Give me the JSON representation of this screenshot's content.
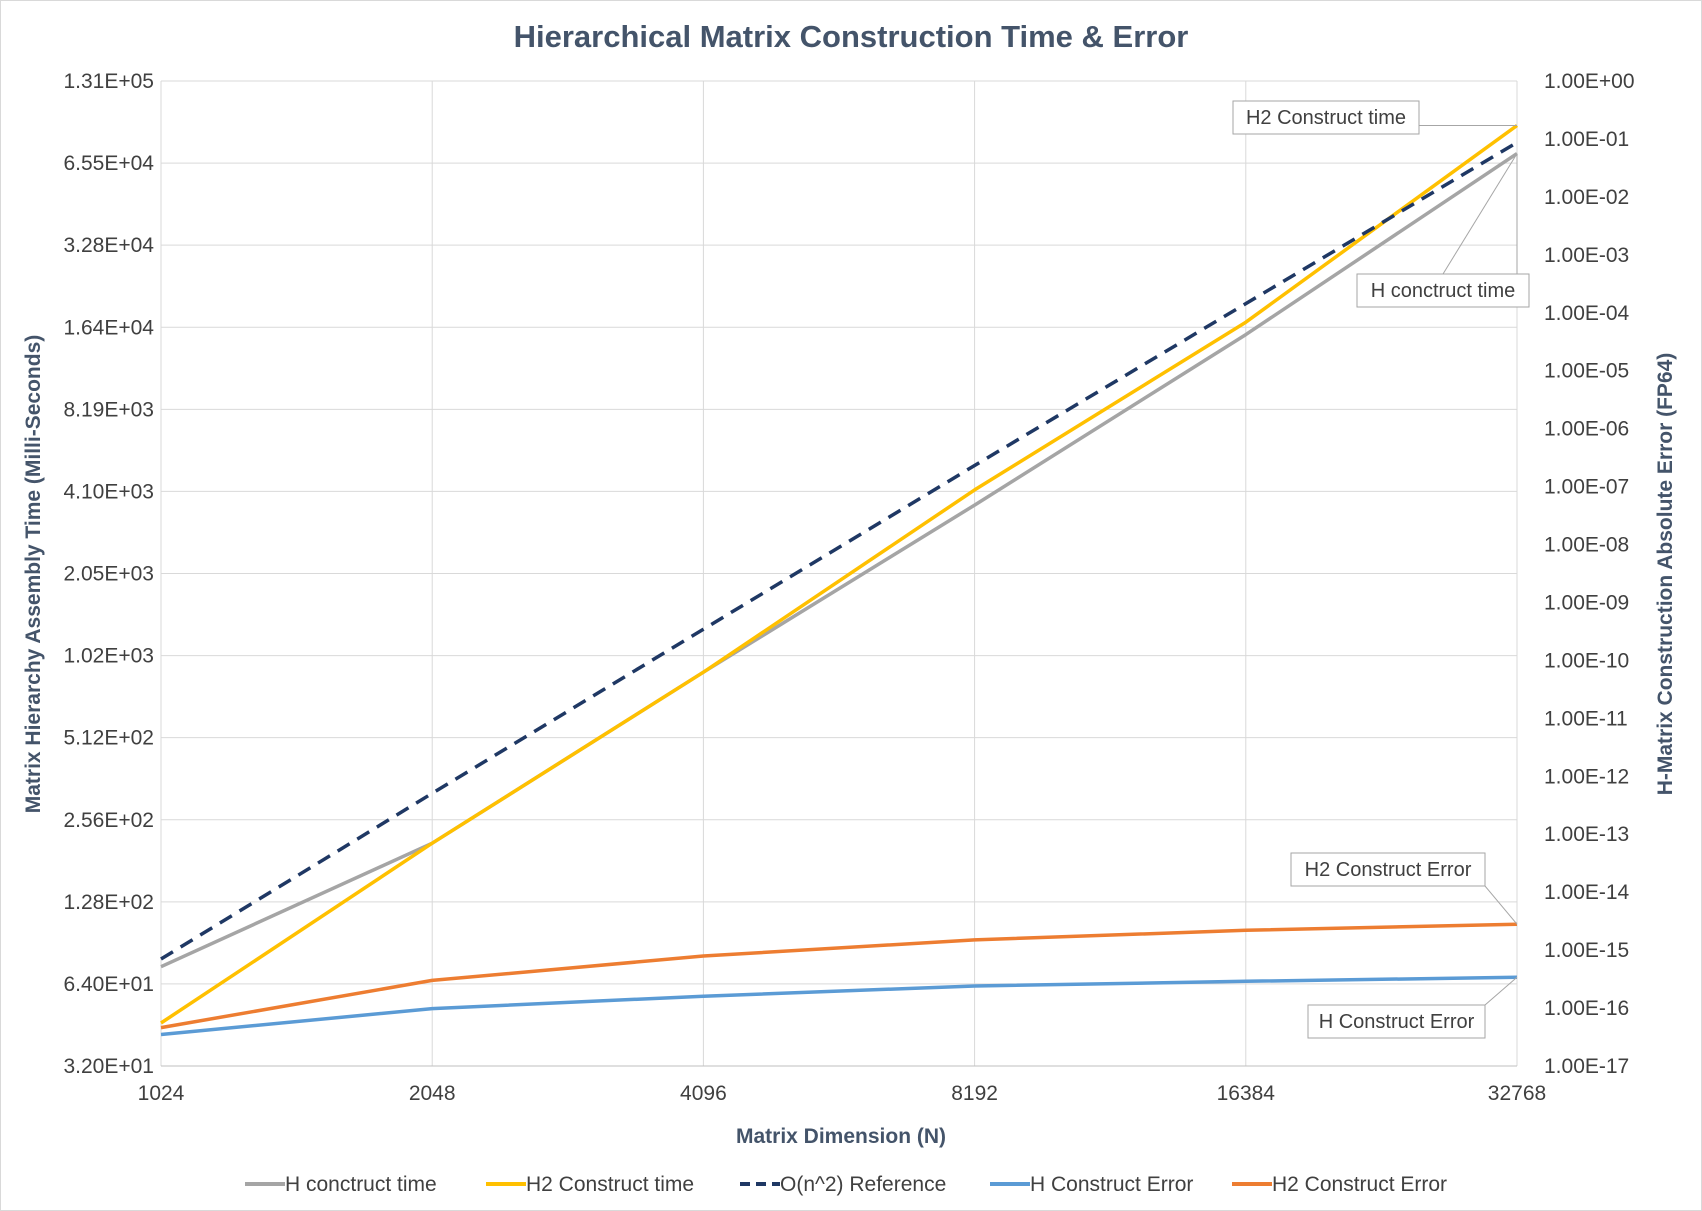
{
  "chart_data": {
    "type": "line",
    "title": "Hierarchical Matrix Construction Time & Error",
    "xlabel": "Matrix Dimension (N)",
    "ylabel": "Matrix Hierarchy Assembly Time (Milli-Seconds)",
    "y2label": "H-Matrix Construction Absolute Error (FP64)",
    "x_scale": "log2",
    "y_scale": "log2",
    "y2_scale": "log10",
    "x": [
      1024,
      2048,
      4096,
      8192,
      16384,
      32768
    ],
    "x_tick_labels": [
      "1024",
      "2048",
      "4096",
      "8192",
      "16384",
      "32768"
    ],
    "ylim": [
      32,
      131072
    ],
    "y_tick_values": [
      32,
      64,
      128,
      256,
      512,
      1024,
      2048,
      4096,
      8192,
      16384,
      32768,
      65536,
      131072
    ],
    "y_tick_labels": [
      "3.20E+01",
      "6.40E+01",
      "1.28E+02",
      "2.56E+02",
      "5.12E+02",
      "1.02E+03",
      "2.05E+03",
      "4.10E+03",
      "8.19E+03",
      "1.64E+04",
      "3.28E+04",
      "6.55E+04",
      "1.31E+05"
    ],
    "y2lim": [
      1e-17,
      1
    ],
    "y2_tick_values": [
      1e-17,
      1e-16,
      1e-15,
      1e-14,
      1e-13,
      1e-12,
      1e-11,
      1e-10,
      1e-09,
      1e-08,
      1e-07,
      1e-06,
      1e-05,
      0.0001,
      0.001,
      0.01,
      0.1,
      1
    ],
    "y2_tick_labels": [
      "1.00E-17",
      "1.00E-16",
      "1.00E-15",
      "1.00E-14",
      "1.00E-13",
      "1.00E-12",
      "1.00E-11",
      "1.00E-10",
      "1.00E-09",
      "1.00E-08",
      "1.00E-07",
      "1.00E-06",
      "1.00E-05",
      "1.00E-04",
      "1.00E-03",
      "1.00E-02",
      "1.00E-01",
      "1.00E+00"
    ],
    "grid": true,
    "legend_position": "bottom",
    "series": [
      {
        "name": "H conctruct time",
        "axis": "left",
        "color": "#a5a5a5",
        "dash": false,
        "values": [
          74,
          210,
          890,
          3650,
          15400,
          71000
        ]
      },
      {
        "name": "H2 Construct time",
        "axis": "left",
        "color": "#ffc000",
        "dash": false,
        "values": [
          46,
          210,
          890,
          4150,
          17100,
          90000
        ]
      },
      {
        "name": "O(n^2) Reference",
        "axis": "left",
        "color": "#1f3864",
        "dash": true,
        "values": [
          79,
          320,
          1280,
          5100,
          20000,
          78000
        ]
      },
      {
        "name": "H Construct Error",
        "axis": "right",
        "color": "#5b9bd5",
        "dash": false,
        "values": [
          3.5e-17,
          9.8e-17,
          1.6e-16,
          2.4e-16,
          2.9e-16,
          3.4e-16
        ]
      },
      {
        "name": "H2 Construct Error",
        "axis": "right",
        "color": "#ed7d31",
        "dash": false,
        "values": [
          4.6e-17,
          3e-16,
          7.9e-16,
          1.5e-15,
          2.2e-15,
          2.8e-15
        ]
      }
    ],
    "annotations": [
      {
        "text": "H2 Construct time",
        "series": 1,
        "point": 5
      },
      {
        "text": "H conctruct time",
        "series": 0,
        "point": 5
      },
      {
        "text": "H2 Construct Error",
        "series": 4,
        "point": 5
      },
      {
        "text": "H Construct Error",
        "series": 3,
        "point": 5
      }
    ]
  }
}
